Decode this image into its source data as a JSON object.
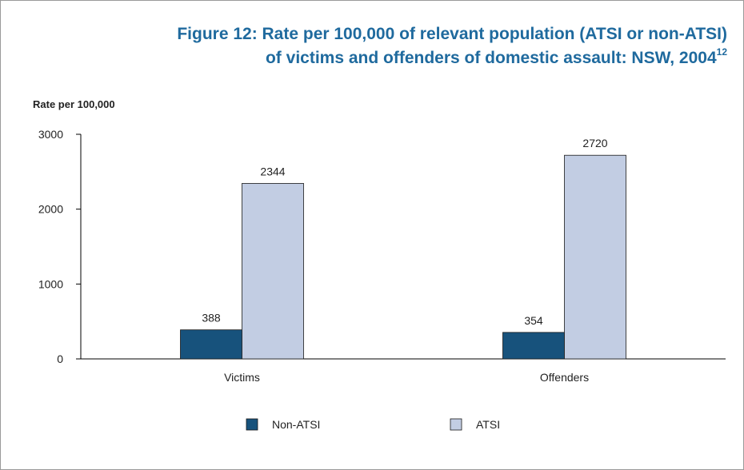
{
  "figure": {
    "title_line1": "Figure 12: Rate per 100,000 of relevant population (ATSI or non-ATSI)",
    "title_line2": "of victims and offenders of domestic assault: NSW, 2004",
    "title_sup": "12"
  },
  "chart_data": {
    "type": "bar",
    "ylabel": "Rate per 100,000",
    "xlabel": "",
    "categories": [
      "Victims",
      "Offenders"
    ],
    "series": [
      {
        "name": "Non-ATSI",
        "values": [
          388,
          354
        ],
        "color": "#17527c"
      },
      {
        "name": "ATSI",
        "values": [
          2344,
          2720
        ],
        "color": "#c2cde3"
      }
    ],
    "ylim": [
      0,
      3000
    ],
    "yticks": [
      0,
      1000,
      2000,
      3000
    ],
    "grid": false,
    "data_labels": true,
    "legend_position": "bottom"
  }
}
